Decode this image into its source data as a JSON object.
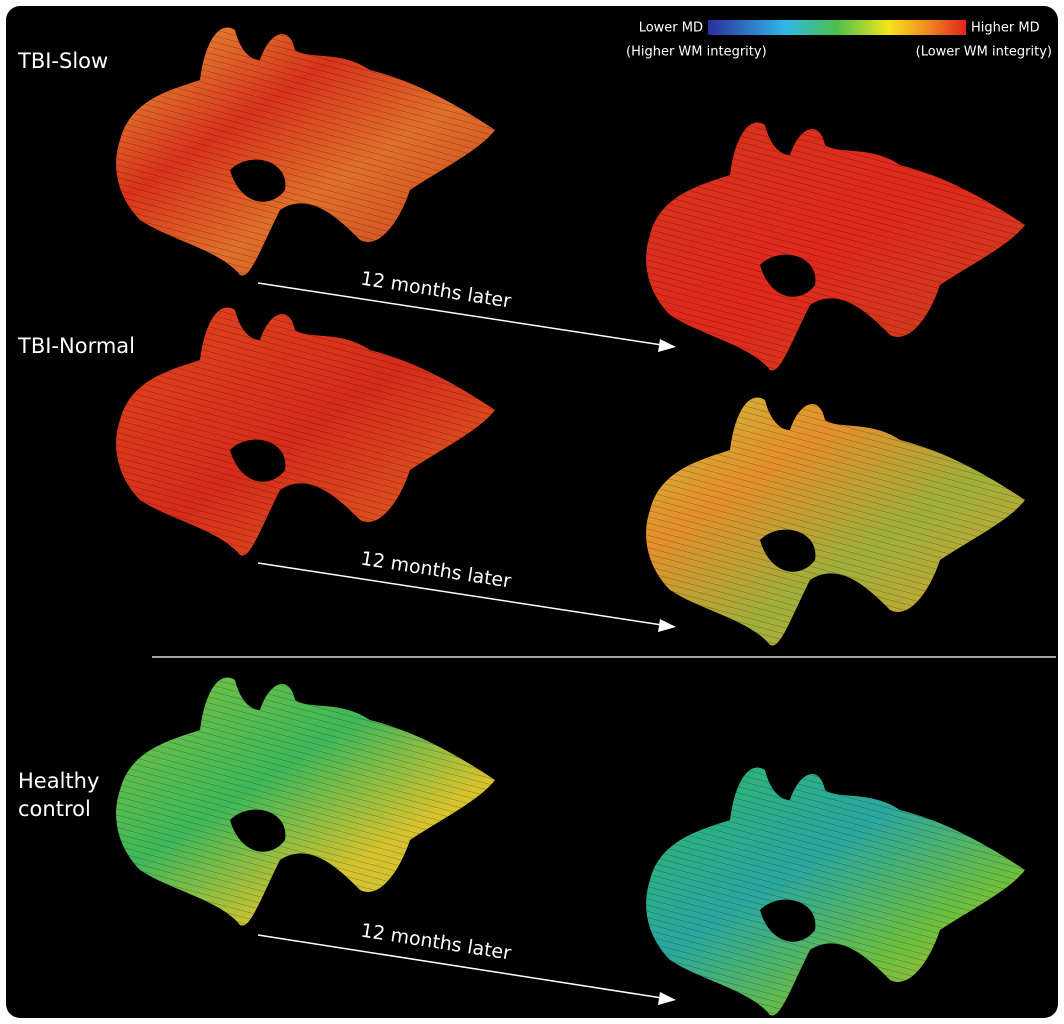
{
  "legend": {
    "low": "Lower MD",
    "high": "Higher MD",
    "low_note": "(Higher WM integrity)",
    "high_note": "(Lower WM integrity)"
  },
  "groups": [
    {
      "label": "TBI-Slow",
      "arrow_label": "12 months later"
    },
    {
      "label": "TBI-Normal",
      "arrow_label": "12 months later"
    },
    {
      "label_lines": [
        "Healthy",
        "control"
      ],
      "arrow_label": "12 months later"
    }
  ]
}
